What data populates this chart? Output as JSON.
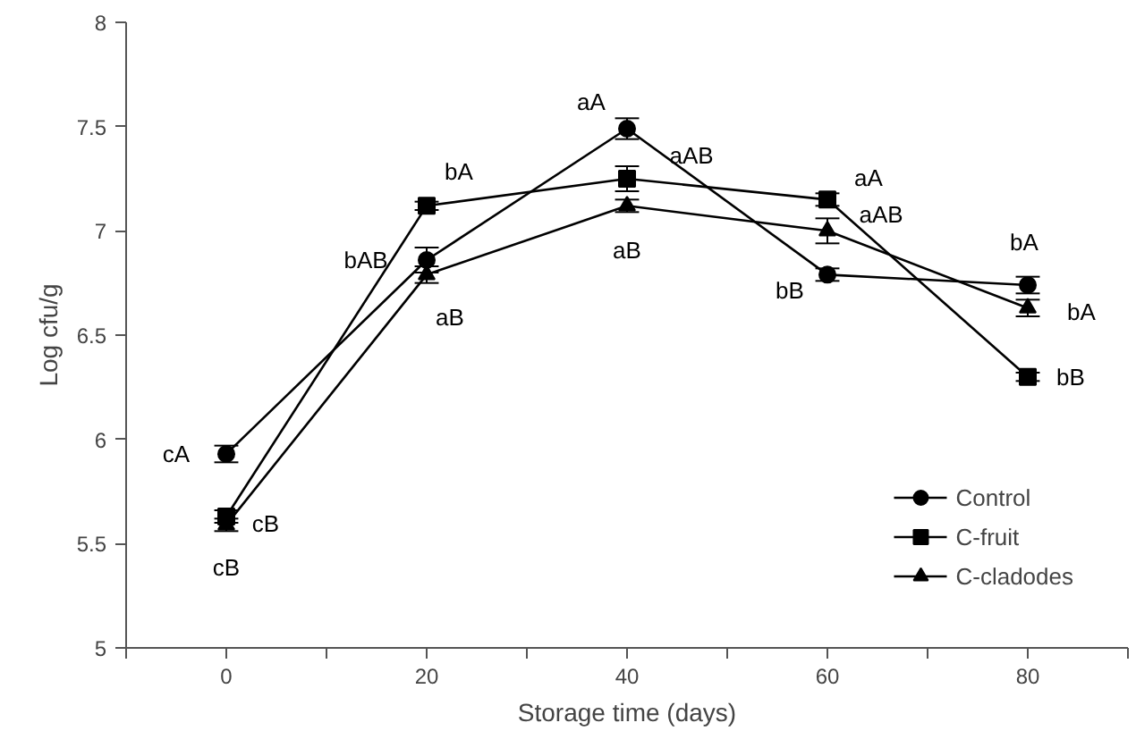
{
  "chart_data": {
    "type": "line",
    "xlabel": "Storage time (days)",
    "ylabel": "Log cfu/g",
    "x": [
      0,
      20,
      40,
      60,
      80
    ],
    "xlim": [
      -10,
      90
    ],
    "xticks": [
      {
        "value": -10,
        "label": null
      },
      0,
      {
        "value": 10,
        "label": null
      },
      20,
      {
        "value": 30,
        "label": null
      },
      40,
      {
        "value": 50,
        "label": null
      },
      60,
      {
        "value": 70,
        "label": null
      },
      80,
      {
        "value": 90,
        "label": null
      }
    ],
    "ylim": [
      5,
      8
    ],
    "yticks": [
      5,
      5.5,
      6,
      6.5,
      7,
      7.5,
      8
    ],
    "grid": false,
    "legend": "bottom right",
    "line_style": "solid",
    "series": [
      {
        "name": "Control",
        "color": "#000000",
        "marker": "circle",
        "values": [
          5.93,
          6.86,
          7.49,
          6.79,
          6.74
        ],
        "errors": [
          0.04,
          0.06,
          0.05,
          0.03,
          0.04
        ]
      },
      {
        "name": "C-fruit",
        "color": "#000000",
        "marker": "square",
        "values": [
          5.63,
          7.12,
          7.25,
          7.15,
          6.3
        ],
        "errors": [
          0.03,
          0.02,
          0.06,
          0.03,
          0.02
        ]
      },
      {
        "name": "C-cladodes",
        "color": "#000000",
        "marker": "triangle",
        "values": [
          5.59,
          6.79,
          7.12,
          7.0,
          6.63
        ],
        "errors": [
          0.03,
          0.04,
          0.03,
          0.06,
          0.04
        ]
      }
    ],
    "annotations": [
      {
        "text": "cA",
        "x": 0,
        "y": 5.93
      },
      {
        "text": "cB",
        "x": 0,
        "y": 5.63
      },
      {
        "text": "cB",
        "x": 0,
        "y": 5.59
      },
      {
        "text": "bAB",
        "x": 20,
        "y": 6.86
      },
      {
        "text": "bA",
        "x": 20,
        "y": 7.12
      },
      {
        "text": "aB",
        "x": 20,
        "y": 6.79
      },
      {
        "text": "aA",
        "x": 40,
        "y": 7.49
      },
      {
        "text": "aAB",
        "x": 40,
        "y": 7.25
      },
      {
        "text": "aB",
        "x": 40,
        "y": 7.12
      },
      {
        "text": "aA",
        "x": 60,
        "y": 7.15
      },
      {
        "text": "aAB",
        "x": 60,
        "y": 7.0
      },
      {
        "text": "bB",
        "x": 60,
        "y": 6.79
      },
      {
        "text": "bA",
        "x": 80,
        "y": 6.74
      },
      {
        "text": "bA",
        "x": 80,
        "y": 6.63
      },
      {
        "text": "bB",
        "x": 80,
        "y": 6.3
      }
    ]
  }
}
